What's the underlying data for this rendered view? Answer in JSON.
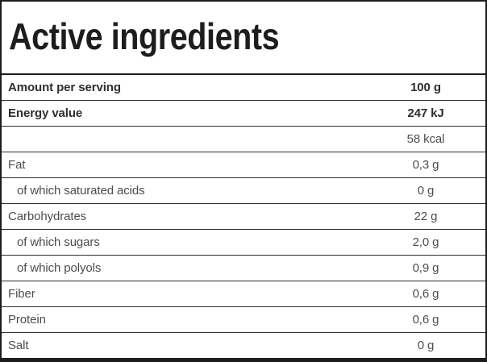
{
  "colors": {
    "outer_border": "#1c1c1c",
    "thin_divider": "#2d2d2d",
    "title_text": "#1d1d1d",
    "bold_text": "#2e2e2e",
    "regular_text": "#4c4c4c",
    "background": "#ffffff"
  },
  "table": {
    "title": "Active ingredients",
    "header": {
      "label": "Amount per serving",
      "value": "100 g"
    },
    "rows": [
      {
        "label": "Energy value",
        "value": "247 kJ"
      },
      {
        "label": "",
        "value": "58 kcal"
      },
      {
        "label": "Fat",
        "value": "0,3 g"
      },
      {
        "label": "of which saturated acids",
        "value": "0 g"
      },
      {
        "label": "Carbohydrates",
        "value": "22 g"
      },
      {
        "label": "of which sugars",
        "value": "2,0 g"
      },
      {
        "label": "of which polyols",
        "value": "0,9 g"
      },
      {
        "label": "Fiber",
        "value": "0,6 g"
      },
      {
        "label": "Protein",
        "value": "0,6 g"
      },
      {
        "label": "Salt",
        "value": "0 g"
      }
    ]
  }
}
